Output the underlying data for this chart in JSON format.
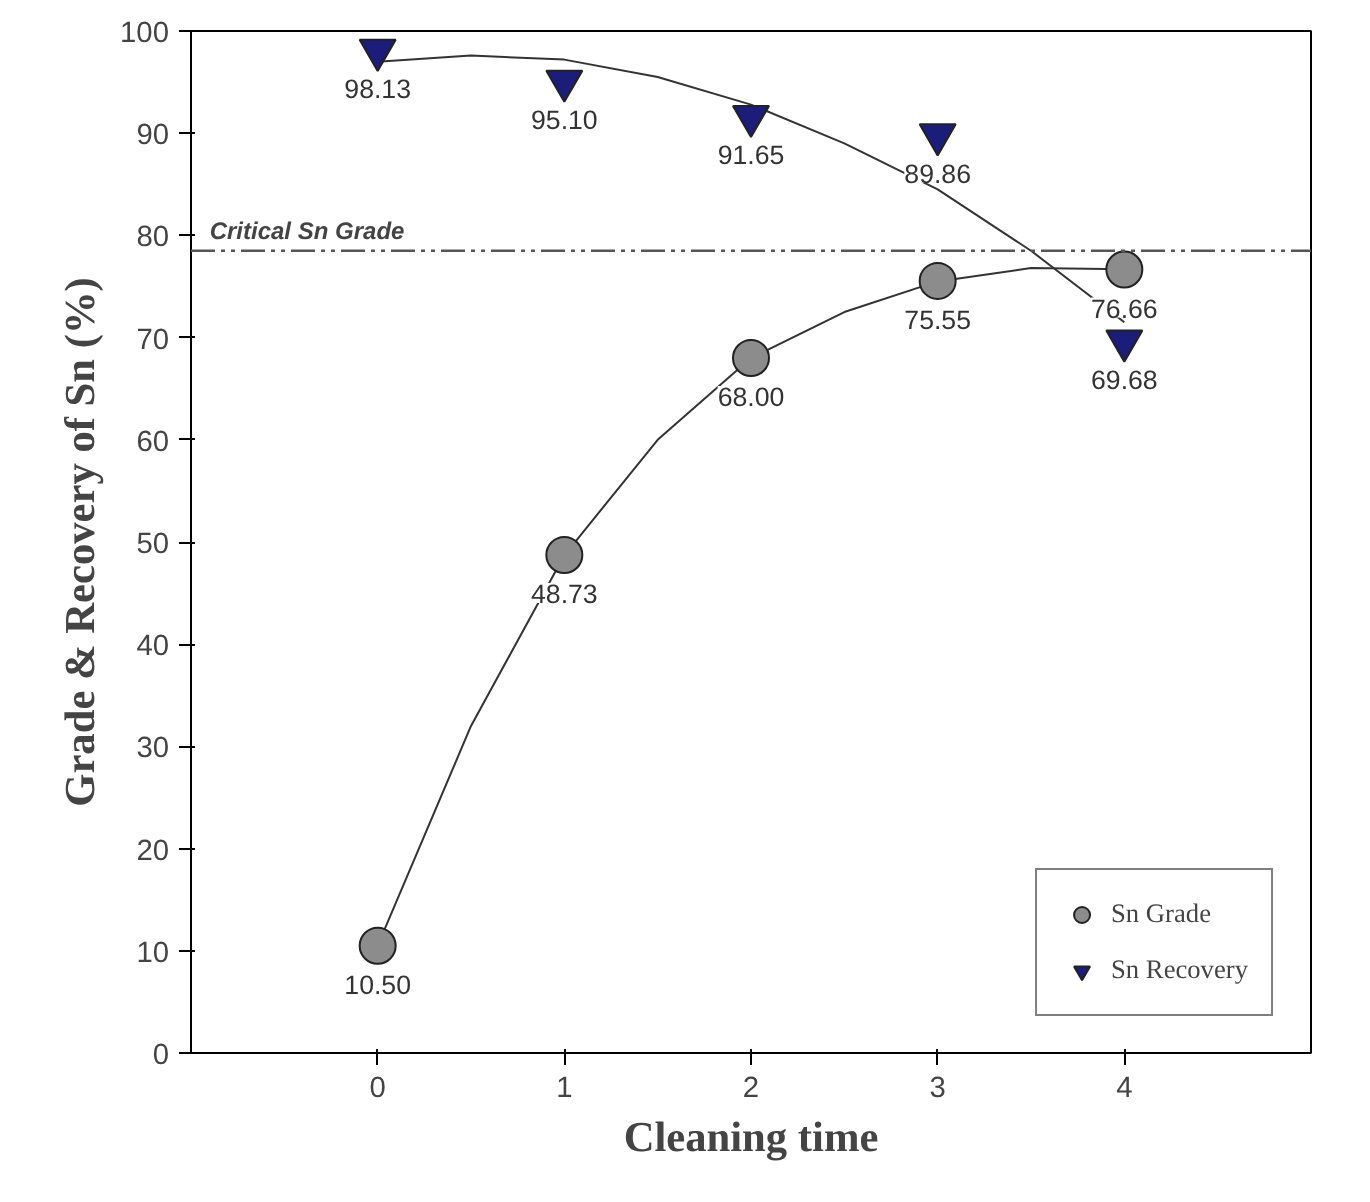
{
  "chart_data": {
    "type": "scatter",
    "xlabel": "Cleaning time",
    "ylabel": "Grade & Recovery of Sn (%)",
    "x": [
      0,
      1,
      2,
      3,
      4
    ],
    "xlim": [
      -1,
      5
    ],
    "xticks": [
      0,
      1,
      2,
      3,
      4
    ],
    "ylim": [
      0,
      100
    ],
    "yticks": [
      0,
      10,
      20,
      30,
      40,
      50,
      60,
      70,
      80,
      90,
      100
    ],
    "series": [
      {
        "name": "Sn Grade",
        "color": "#8c8c8c",
        "marker": "circle",
        "values": [
          10.5,
          48.73,
          68.0,
          75.55,
          76.66
        ],
        "value_labels": [
          "10.50",
          "48.73",
          "68.00",
          "75.55",
          "76.66"
        ]
      },
      {
        "name": "Sn Recovery",
        "color": "#1c1c7a",
        "marker": "triangle",
        "values": [
          98.13,
          95.1,
          91.65,
          89.86,
          69.68
        ],
        "value_labels": [
          "98.13",
          "95.10",
          "91.65",
          "89.86",
          "69.68"
        ]
      },
      {
        "type": "line",
        "color": "#333333",
        "x": [
          0,
          0.5,
          1,
          1.5,
          2,
          2.5,
          3,
          3.5,
          4
        ],
        "values": [
          10.5,
          32,
          48.7,
          60,
          68,
          72.5,
          75.5,
          76.8,
          76.7
        ]
      },
      {
        "type": "line",
        "color": "#333333",
        "x": [
          0,
          0.5,
          1,
          1.5,
          2,
          2.5,
          3,
          3.5,
          4
        ],
        "values": [
          97,
          97.6,
          97.2,
          95.5,
          92.8,
          89,
          84.5,
          78.5,
          71.5
        ]
      }
    ],
    "ref_lines": [
      {
        "axis": "y",
        "value": 78.5,
        "label": "Critical Sn Grade",
        "color": "#555555",
        "line_style": "dashed"
      }
    ],
    "grid": false,
    "legend": "bottom right"
  }
}
